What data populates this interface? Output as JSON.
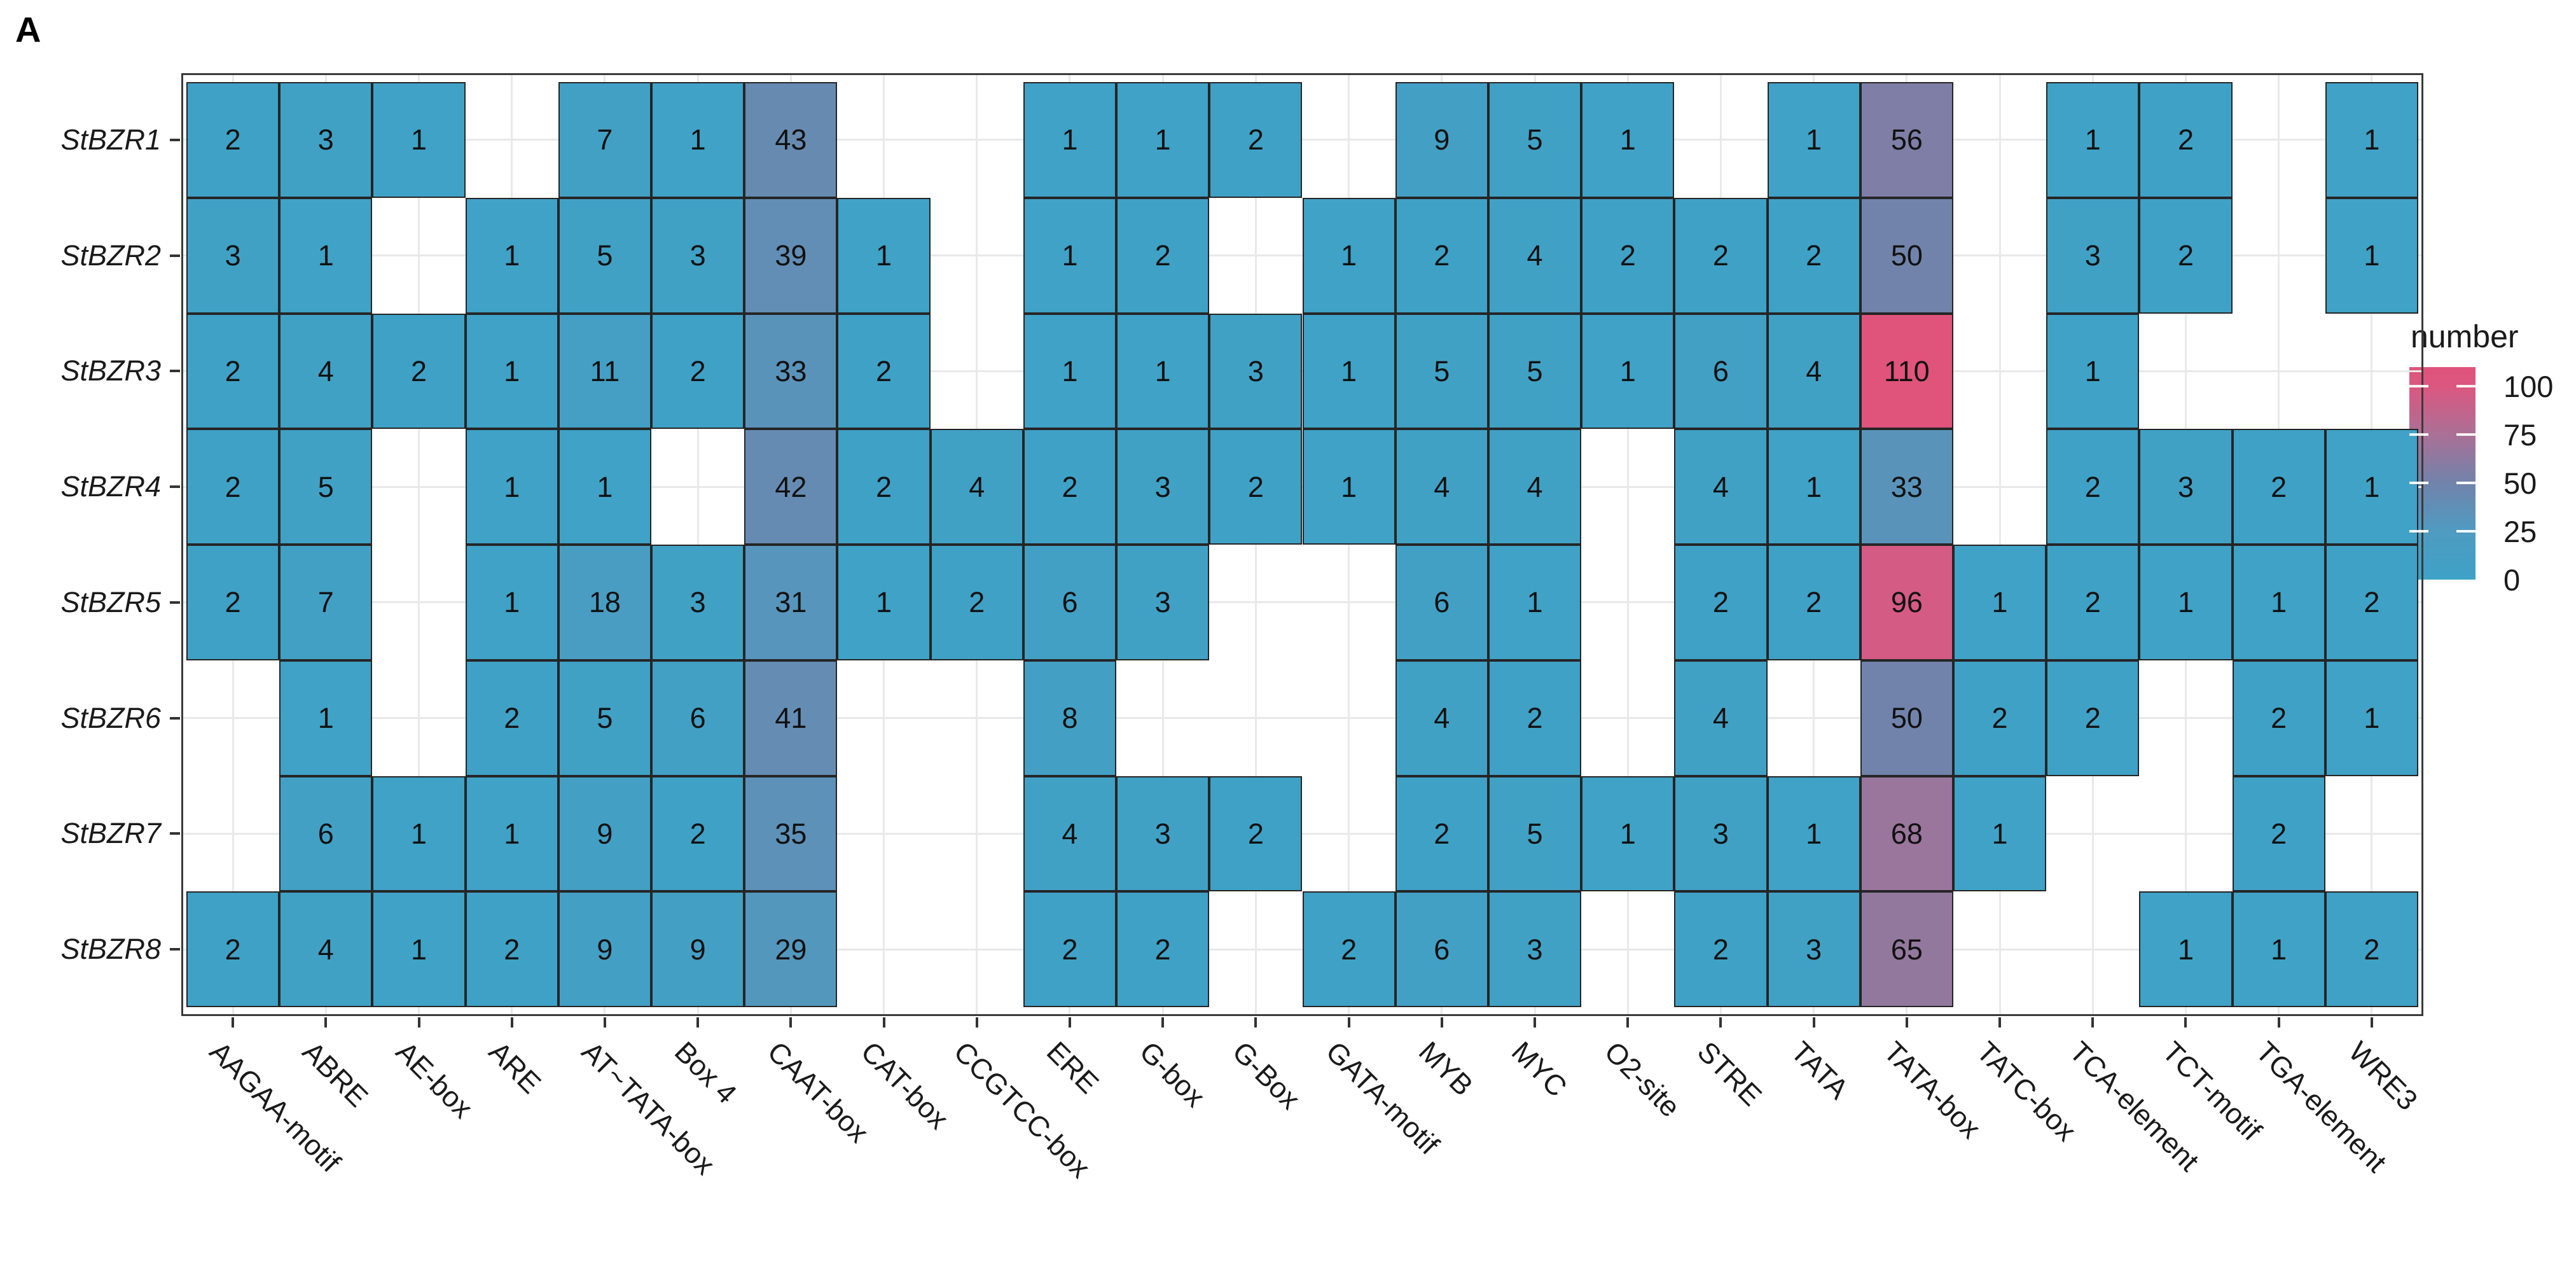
{
  "figure": {
    "panel_label": "A"
  },
  "legend": {
    "title": "number",
    "ticks": [
      100,
      75,
      50,
      25,
      0
    ],
    "scale_min": 0,
    "scale_max": 110,
    "gradient_stops": [
      {
        "v": 0,
        "c": "#3EA2C6"
      },
      {
        "v": 25,
        "c": "#4F9BC1"
      },
      {
        "v": 50,
        "c": "#7183AB"
      },
      {
        "v": 75,
        "c": "#AA7096"
      },
      {
        "v": 100,
        "c": "#DC5780"
      },
      {
        "v": 110,
        "c": "#E0537B"
      }
    ]
  },
  "chart_data": {
    "type": "heatmap",
    "title": "",
    "xlabel": "",
    "ylabel": "",
    "legend_position": "right",
    "grid": true,
    "categories": [
      "AAGAA-motif",
      "ABRE",
      "AE-box",
      "ARE",
      "AT~TATA-box",
      "Box 4",
      "CAAT-box",
      "CAT-box",
      "CCGTCC-box",
      "ERE",
      "G-box",
      "G-Box",
      "GATA-motif",
      "MYB",
      "MYC",
      "O2-site",
      "STRE",
      "TATA",
      "TATA-box",
      "TATC-box",
      "TCA-element",
      "TCT-motif",
      "TGA-element",
      "WRE3"
    ],
    "rows": [
      "StBZR1",
      "StBZR2",
      "StBZR3",
      "StBZR4",
      "StBZR5",
      "StBZR6",
      "StBZR7",
      "StBZR8"
    ],
    "values": [
      [
        2,
        3,
        1,
        null,
        7,
        1,
        43,
        null,
        null,
        1,
        1,
        2,
        null,
        9,
        5,
        1,
        null,
        1,
        56,
        null,
        1,
        2,
        null,
        1
      ],
      [
        3,
        1,
        null,
        1,
        5,
        3,
        39,
        1,
        null,
        1,
        2,
        null,
        1,
        2,
        4,
        2,
        2,
        2,
        50,
        null,
        3,
        2,
        null,
        1
      ],
      [
        2,
        4,
        2,
        1,
        11,
        2,
        33,
        2,
        null,
        1,
        1,
        3,
        1,
        5,
        5,
        1,
        6,
        4,
        110,
        null,
        1,
        null,
        null,
        null
      ],
      [
        2,
        5,
        null,
        1,
        1,
        null,
        42,
        2,
        4,
        2,
        3,
        2,
        1,
        4,
        4,
        null,
        4,
        1,
        33,
        null,
        2,
        3,
        2,
        1
      ],
      [
        2,
        7,
        null,
        1,
        18,
        3,
        31,
        1,
        2,
        6,
        3,
        null,
        null,
        6,
        1,
        null,
        2,
        2,
        96,
        1,
        2,
        1,
        1,
        2
      ],
      [
        null,
        1,
        null,
        2,
        5,
        6,
        41,
        null,
        null,
        8,
        null,
        null,
        null,
        4,
        2,
        null,
        4,
        null,
        50,
        2,
        2,
        null,
        2,
        1
      ],
      [
        null,
        6,
        1,
        1,
        9,
        2,
        35,
        null,
        null,
        4,
        3,
        2,
        null,
        2,
        5,
        1,
        3,
        1,
        68,
        1,
        null,
        null,
        2,
        null
      ],
      [
        2,
        4,
        1,
        2,
        9,
        9,
        29,
        null,
        null,
        2,
        2,
        null,
        2,
        6,
        3,
        null,
        2,
        3,
        65,
        null,
        null,
        1,
        1,
        2
      ]
    ],
    "style": {
      "tile_base_color": "#3EA2C6",
      "tile_max_color": "#E0537B",
      "tile_border_color": "#252525",
      "grid_color": "#E9E9E9",
      "panel_border_color": "#3A3A3A",
      "text_color": "#1A1A1A"
    }
  }
}
